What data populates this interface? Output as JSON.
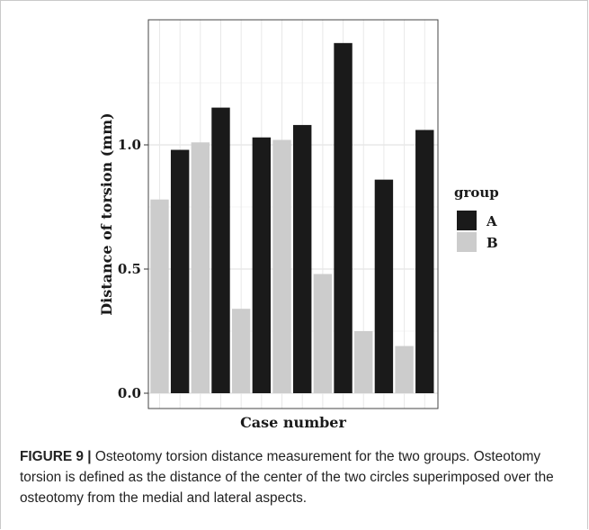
{
  "caption": {
    "label": "FIGURE 9 |",
    "text": "Osteotomy torsion distance measurement for the two groups. Osteotomy torsion is defined as the distance of the center of the two circles superimposed over the osteotomy from the medial and lateral aspects."
  },
  "chart_data": {
    "type": "bar",
    "title": "",
    "xlabel": "Case number",
    "ylabel": "Distance of torsion (mm)",
    "ylim": [
      0,
      1.5
    ],
    "yticks": [
      "0.0",
      "0.5",
      "1.0"
    ],
    "grid": true,
    "legend": {
      "title": "group",
      "placement": "right"
    },
    "series": [
      {
        "name": "A",
        "color": "#1a1a1a",
        "values": [
          null,
          0.98,
          null,
          1.15,
          null,
          1.03,
          null,
          1.08,
          null,
          1.41,
          null,
          0.86,
          null,
          1.06
        ]
      },
      {
        "name": "B",
        "color": "#cccccc",
        "values": [
          0.78,
          null,
          1.01,
          null,
          0.34,
          null,
          1.02,
          null,
          0.48,
          null,
          0.25,
          null,
          0.19,
          null
        ]
      }
    ]
  }
}
